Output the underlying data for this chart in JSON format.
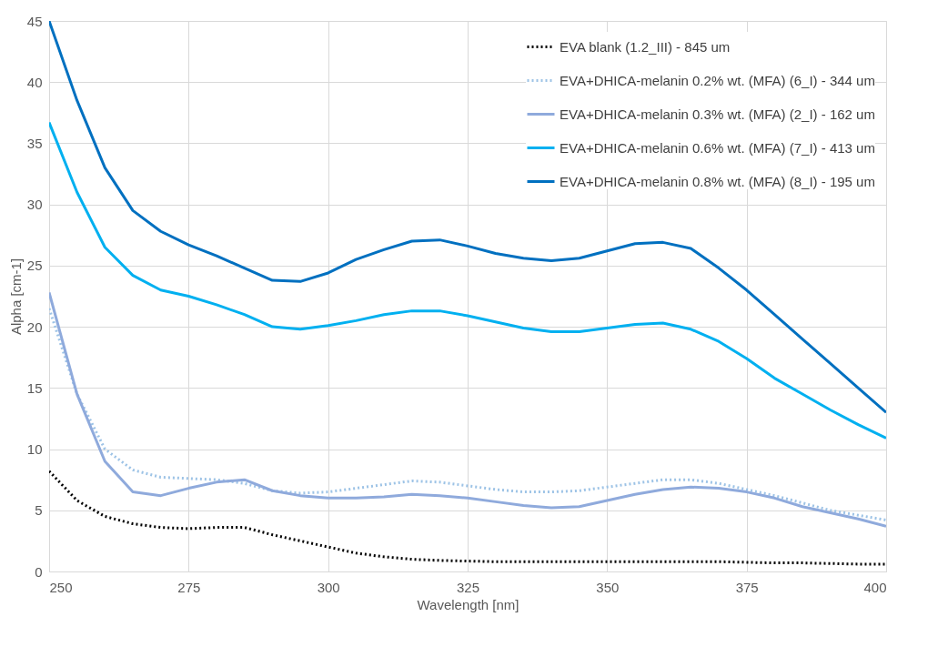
{
  "chart_data": {
    "type": "line",
    "xlabel": "Wavelength [nm]",
    "ylabel": "Alpha [cm-1]",
    "xlim": [
      250,
      400
    ],
    "xticks": [
      250,
      275,
      300,
      325,
      350,
      375,
      400
    ],
    "ylim": [
      0,
      45
    ],
    "yticks": [
      0,
      5,
      10,
      15,
      20,
      25,
      30,
      35,
      40,
      45
    ],
    "grid": true,
    "legend": "top right",
    "marker": "none",
    "x": [
      250,
      255,
      260,
      265,
      270,
      275,
      280,
      285,
      290,
      295,
      300,
      305,
      310,
      315,
      320,
      325,
      330,
      335,
      340,
      345,
      350,
      355,
      360,
      365,
      370,
      375,
      380,
      385,
      390,
      395,
      400
    ],
    "series": [
      {
        "name": "EVA blank (1.2_III) - 845 um",
        "color": "#000000",
        "line_style": "dotted",
        "values": [
          8.2,
          5.8,
          4.5,
          3.9,
          3.6,
          3.5,
          3.6,
          3.6,
          3.0,
          2.5,
          2.0,
          1.5,
          1.2,
          1.0,
          0.9,
          0.85,
          0.8,
          0.8,
          0.8,
          0.8,
          0.8,
          0.8,
          0.8,
          0.8,
          0.8,
          0.75,
          0.7,
          0.7,
          0.65,
          0.6,
          0.6
        ]
      },
      {
        "name": "EVA+DHICA-melanin 0.2% wt. (MFA) (6_I) - 344 um",
        "color": "#9dc3e6",
        "line_style": "dotted",
        "values": [
          21.5,
          14.5,
          10,
          8.3,
          7.7,
          7.6,
          7.5,
          7.2,
          6.6,
          6.4,
          6.5,
          6.8,
          7.1,
          7.4,
          7.3,
          7.0,
          6.7,
          6.5,
          6.5,
          6.6,
          6.9,
          7.2,
          7.5,
          7.5,
          7.2,
          6.7,
          6.2,
          5.6,
          5.0,
          4.6,
          4.2
        ]
      },
      {
        "name": "EVA+DHICA-melanin 0.3% wt. (MFA) (2_I) - 162 um",
        "color": "#8faadc",
        "line_style": "solid",
        "values": [
          22.8,
          14.5,
          9,
          6.5,
          6.2,
          6.8,
          7.3,
          7.5,
          6.6,
          6.2,
          6.0,
          6.0,
          6.1,
          6.3,
          6.2,
          6.0,
          5.7,
          5.4,
          5.2,
          5.3,
          5.8,
          6.3,
          6.7,
          6.9,
          6.8,
          6.5,
          6.0,
          5.3,
          4.8,
          4.3,
          3.7
        ]
      },
      {
        "name": "EVA+DHICA-melanin 0.6% wt. (MFA) (7_I) - 413 um",
        "color": "#00b0f0",
        "line_style": "solid",
        "values": [
          36.7,
          31,
          26.5,
          24.2,
          23.0,
          22.5,
          21.8,
          21.0,
          20.0,
          19.8,
          20.1,
          20.5,
          21.0,
          21.3,
          21.3,
          20.9,
          20.4,
          19.9,
          19.6,
          19.6,
          19.9,
          20.2,
          20.3,
          19.8,
          18.8,
          17.4,
          15.8,
          14.5,
          13.2,
          12.0,
          10.9
        ]
      },
      {
        "name": "EVA+DHICA-melanin 0.8% wt. (MFA) (8_I) - 195 um",
        "color": "#0070c0",
        "line_style": "solid",
        "values": [
          45,
          38.5,
          33,
          29.5,
          27.8,
          26.7,
          25.8,
          24.8,
          23.8,
          23.7,
          24.4,
          25.5,
          26.3,
          27.0,
          27.1,
          26.6,
          26.0,
          25.6,
          25.4,
          25.6,
          26.2,
          26.8,
          26.9,
          26.4,
          24.8,
          23.0,
          21.0,
          19.0,
          17.0,
          15.0,
          13.0
        ]
      }
    ]
  }
}
